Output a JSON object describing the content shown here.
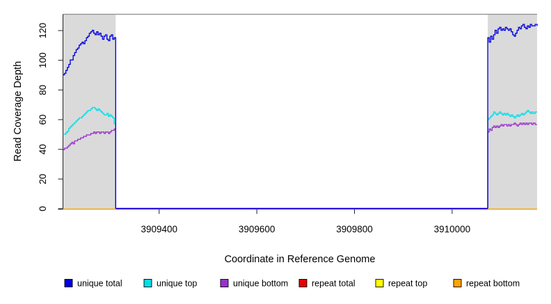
{
  "chart_data": {
    "type": "line",
    "title": "",
    "xlabel": "Coordinate in Reference Genome",
    "ylabel": "Read Coverage Depth",
    "xlim": [
      3909203,
      3910174
    ],
    "ylim": [
      0,
      131
    ],
    "xticks": [
      3909400,
      3909600,
      3909800,
      3910000
    ],
    "yticks": [
      0,
      20,
      40,
      60,
      80,
      100,
      120
    ],
    "step": true,
    "grid": false,
    "legend_position": "bottom",
    "plot_border_color": "#8c8c8c",
    "shaded_region_color": "#dadada",
    "shaded_regions": [
      {
        "name": "left-flank",
        "x0": 3909203,
        "x1": 3909311
      },
      {
        "name": "right-flank",
        "x0": 3910073,
        "x1": 3910174
      }
    ],
    "series": [
      {
        "name": "unique total",
        "color": "#0000e0",
        "segments": [
          [
            [
              3909203,
              90
            ],
            [
              3909206,
              91
            ],
            [
              3909209,
              93
            ],
            [
              3909212,
              95
            ],
            [
              3909215,
              97
            ],
            [
              3909218,
              100
            ],
            [
              3909221,
              100
            ],
            [
              3909224,
              103
            ],
            [
              3909227,
              105
            ],
            [
              3909230,
              107
            ],
            [
              3909233,
              108
            ],
            [
              3909236,
              110
            ],
            [
              3909239,
              111
            ],
            [
              3909242,
              112
            ],
            [
              3909245,
              111
            ],
            [
              3909248,
              113
            ],
            [
              3909251,
              115
            ],
            [
              3909254,
              116
            ],
            [
              3909257,
              118
            ],
            [
              3909260,
              119
            ],
            [
              3909263,
              120
            ],
            [
              3909266,
              118
            ],
            [
              3909269,
              117
            ],
            [
              3909272,
              119
            ],
            [
              3909275,
              117
            ],
            [
              3909278,
              118
            ],
            [
              3909281,
              116
            ],
            [
              3909284,
              114
            ],
            [
              3909287,
              116
            ],
            [
              3909290,
              117
            ],
            [
              3909293,
              114
            ],
            [
              3909296,
              113
            ],
            [
              3909299,
              116
            ],
            [
              3909302,
              117
            ],
            [
              3909305,
              114
            ],
            [
              3909308,
              115
            ],
            [
              3909311,
              115
            ],
            [
              3909311,
              0
            ],
            [
              3910073,
              0
            ],
            [
              3910073,
              115
            ],
            [
              3910076,
              112
            ],
            [
              3910079,
              116
            ],
            [
              3910082,
              114
            ],
            [
              3910085,
              117
            ],
            [
              3910088,
              120
            ],
            [
              3910091,
              118
            ],
            [
              3910094,
              121
            ],
            [
              3910097,
              122
            ],
            [
              3910100,
              120
            ],
            [
              3910103,
              121
            ],
            [
              3910106,
              120
            ],
            [
              3910109,
              122
            ],
            [
              3910112,
              121
            ],
            [
              3910115,
              120
            ],
            [
              3910118,
              121
            ],
            [
              3910121,
              119
            ],
            [
              3910124,
              117
            ],
            [
              3910127,
              116
            ],
            [
              3910130,
              118
            ],
            [
              3910133,
              120
            ],
            [
              3910136,
              122
            ],
            [
              3910139,
              121
            ],
            [
              3910142,
              123
            ],
            [
              3910145,
              124
            ],
            [
              3910148,
              122
            ],
            [
              3910151,
              121
            ],
            [
              3910154,
              123
            ],
            [
              3910157,
              122
            ],
            [
              3910160,
              124
            ],
            [
              3910163,
              123
            ],
            [
              3910166,
              123
            ],
            [
              3910170,
              124
            ],
            [
              3910174,
              123
            ]
          ]
        ]
      },
      {
        "name": "unique top",
        "color": "#00dfe8",
        "segments": [
          [
            [
              3909203,
              50
            ],
            [
              3909206,
              50
            ],
            [
              3909209,
              51
            ],
            [
              3909212,
              52
            ],
            [
              3909215,
              54
            ],
            [
              3909218,
              55
            ],
            [
              3909221,
              56
            ],
            [
              3909224,
              57
            ],
            [
              3909227,
              58
            ],
            [
              3909230,
              59
            ],
            [
              3909233,
              60
            ],
            [
              3909236,
              61
            ],
            [
              3909239,
              61
            ],
            [
              3909242,
              62
            ],
            [
              3909245,
              63
            ],
            [
              3909248,
              64
            ],
            [
              3909251,
              65
            ],
            [
              3909254,
              66
            ],
            [
              3909257,
              66
            ],
            [
              3909260,
              67
            ],
            [
              3909263,
              68
            ],
            [
              3909266,
              68
            ],
            [
              3909269,
              67
            ],
            [
              3909272,
              66
            ],
            [
              3909275,
              67
            ],
            [
              3909278,
              66
            ],
            [
              3909281,
              65
            ],
            [
              3909284,
              64
            ],
            [
              3909287,
              63
            ],
            [
              3909290,
              63
            ],
            [
              3909293,
              64
            ],
            [
              3909296,
              62
            ],
            [
              3909299,
              63
            ],
            [
              3909302,
              62
            ],
            [
              3909305,
              61
            ],
            [
              3909308,
              57
            ],
            [
              3909311,
              55
            ],
            [
              3909311,
              0
            ],
            [
              3910073,
              0
            ],
            [
              3910073,
              60
            ],
            [
              3910076,
              61
            ],
            [
              3910079,
              62
            ],
            [
              3910082,
              63
            ],
            [
              3910085,
              65
            ],
            [
              3910088,
              64
            ],
            [
              3910091,
              63
            ],
            [
              3910094,
              64
            ],
            [
              3910097,
              65
            ],
            [
              3910100,
              64
            ],
            [
              3910103,
              63
            ],
            [
              3910106,
              64
            ],
            [
              3910109,
              63
            ],
            [
              3910112,
              64
            ],
            [
              3910115,
              63
            ],
            [
              3910118,
              62
            ],
            [
              3910121,
              63
            ],
            [
              3910124,
              62
            ],
            [
              3910127,
              61
            ],
            [
              3910130,
              62
            ],
            [
              3910133,
              63
            ],
            [
              3910136,
              62
            ],
            [
              3910139,
              63
            ],
            [
              3910142,
              64
            ],
            [
              3910145,
              63
            ],
            [
              3910148,
              64
            ],
            [
              3910151,
              65
            ],
            [
              3910154,
              66
            ],
            [
              3910157,
              65
            ],
            [
              3910160,
              64
            ],
            [
              3910163,
              65
            ],
            [
              3910166,
              64
            ],
            [
              3910170,
              65
            ],
            [
              3910174,
              65
            ]
          ]
        ]
      },
      {
        "name": "unique bottom",
        "color": "#9932cc",
        "segments": [
          [
            [
              3909203,
              40
            ],
            [
              3909206,
              41
            ],
            [
              3909209,
              41
            ],
            [
              3909212,
              42
            ],
            [
              3909215,
              43
            ],
            [
              3909218,
              44
            ],
            [
              3909221,
              45
            ],
            [
              3909224,
              44
            ],
            [
              3909227,
              46
            ],
            [
              3909230,
              46
            ],
            [
              3909233,
              47
            ],
            [
              3909236,
              47
            ],
            [
              3909239,
              48
            ],
            [
              3909242,
              48
            ],
            [
              3909245,
              49
            ],
            [
              3909248,
              49
            ],
            [
              3909251,
              50
            ],
            [
              3909254,
              50
            ],
            [
              3909257,
              50
            ],
            [
              3909260,
              51
            ],
            [
              3909263,
              51
            ],
            [
              3909266,
              52
            ],
            [
              3909269,
              51
            ],
            [
              3909272,
              52
            ],
            [
              3909275,
              52
            ],
            [
              3909278,
              51
            ],
            [
              3909281,
              52
            ],
            [
              3909284,
              52
            ],
            [
              3909287,
              51
            ],
            [
              3909290,
              52
            ],
            [
              3909293,
              52
            ],
            [
              3909296,
              51
            ],
            [
              3909299,
              52
            ],
            [
              3909302,
              53
            ],
            [
              3909305,
              53
            ],
            [
              3909308,
              54
            ],
            [
              3909311,
              54
            ],
            [
              3909311,
              0
            ],
            [
              3910073,
              0
            ],
            [
              3910073,
              52
            ],
            [
              3910076,
              54
            ],
            [
              3910079,
              53
            ],
            [
              3910082,
              55
            ],
            [
              3910085,
              56
            ],
            [
              3910088,
              55
            ],
            [
              3910091,
              56
            ],
            [
              3910094,
              55
            ],
            [
              3910097,
              56
            ],
            [
              3910100,
              57
            ],
            [
              3910103,
              56
            ],
            [
              3910106,
              57
            ],
            [
              3910109,
              57
            ],
            [
              3910112,
              56
            ],
            [
              3910115,
              57
            ],
            [
              3910118,
              56
            ],
            [
              3910121,
              57
            ],
            [
              3910124,
              57
            ],
            [
              3910127,
              58
            ],
            [
              3910130,
              57
            ],
            [
              3910133,
              56
            ],
            [
              3910136,
              57
            ],
            [
              3910139,
              58
            ],
            [
              3910142,
              57
            ],
            [
              3910145,
              58
            ],
            [
              3910148,
              57
            ],
            [
              3910151,
              58
            ],
            [
              3910154,
              57
            ],
            [
              3910157,
              58
            ],
            [
              3910160,
              58
            ],
            [
              3910163,
              57
            ],
            [
              3910166,
              58
            ],
            [
              3910170,
              57
            ],
            [
              3910174,
              57
            ]
          ]
        ]
      },
      {
        "name": "repeat total",
        "color": "#e80000",
        "segments": [
          [
            [
              3909203,
              0
            ],
            [
              3909311,
              0
            ]
          ],
          [
            [
              3910073,
              0
            ],
            [
              3910174,
              0
            ]
          ]
        ]
      },
      {
        "name": "repeat top",
        "color": "#ffff00",
        "segments": [
          [
            [
              3909203,
              0
            ],
            [
              3909311,
              0
            ]
          ],
          [
            [
              3910073,
              0
            ],
            [
              3910174,
              0
            ]
          ]
        ]
      },
      {
        "name": "repeat bottom",
        "color": "#ffa500",
        "segments": [
          [
            [
              3909203,
              0
            ],
            [
              3909311,
              0
            ]
          ],
          [
            [
              3910073,
              0
            ],
            [
              3910174,
              0
            ]
          ]
        ]
      }
    ]
  }
}
